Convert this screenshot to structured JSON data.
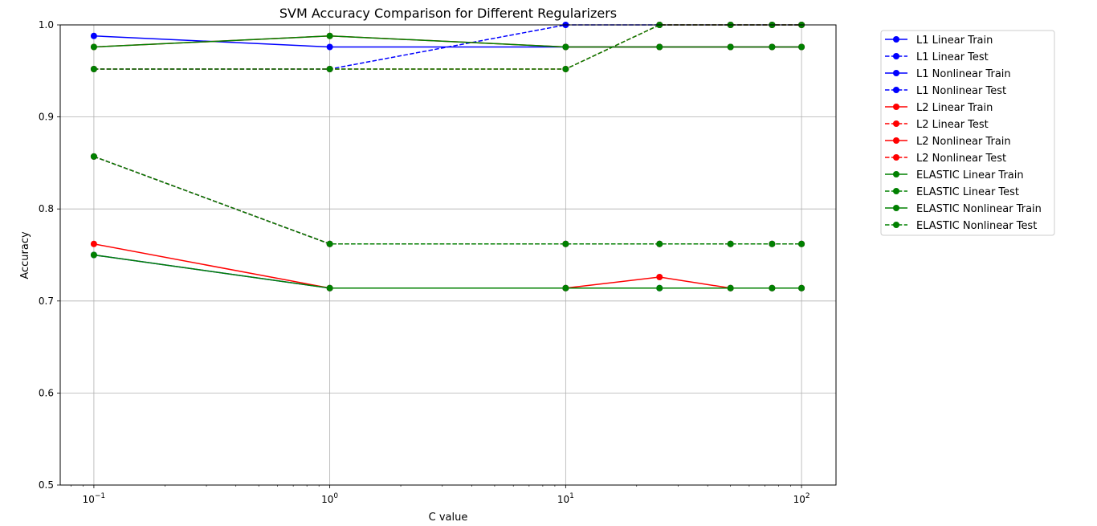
{
  "chart_data": {
    "type": "line",
    "title": "SVM Accuracy Comparison for Different Regularizers",
    "xlabel": "C value",
    "ylabel": "Accuracy",
    "xscale": "log",
    "xlim": [
      0.072,
      140
    ],
    "ylim": [
      0.5,
      1.0
    ],
    "grid": true,
    "legend_position": "outside-right",
    "x_ticks": [
      {
        "value": 0.1,
        "base": "10",
        "exp": "−1"
      },
      {
        "value": 1,
        "base": "10",
        "exp": "0"
      },
      {
        "value": 10,
        "base": "10",
        "exp": "1"
      },
      {
        "value": 100,
        "base": "10",
        "exp": "2"
      }
    ],
    "y_ticks": [
      {
        "value": 0.5,
        "label": "0.5"
      },
      {
        "value": 0.6,
        "label": "0.6"
      },
      {
        "value": 0.7,
        "label": "0.7"
      },
      {
        "value": 0.8,
        "label": "0.8"
      },
      {
        "value": 0.9,
        "label": "0.9"
      },
      {
        "value": 1.0,
        "label": "1.0"
      }
    ],
    "x": [
      0.1,
      1,
      10,
      25,
      50,
      75,
      100
    ],
    "series": [
      {
        "name": "L1 Linear Train",
        "color": "#0000ff",
        "dash": "solid",
        "values": [
          0.988,
          0.976,
          0.976,
          0.976,
          0.976,
          0.976,
          0.976
        ]
      },
      {
        "name": "L1 Linear Test",
        "color": "#0000ff",
        "dash": "dashed",
        "values": [
          0.952,
          0.952,
          1.0,
          1.0,
          1.0,
          1.0,
          1.0
        ]
      },
      {
        "name": "L1 Nonlinear Train",
        "color": "#0000ff",
        "dash": "solid",
        "values": [
          0.75,
          0.714,
          0.714,
          0.714,
          0.714,
          0.714,
          0.714
        ]
      },
      {
        "name": "L1 Nonlinear Test",
        "color": "#0000ff",
        "dash": "dashed",
        "values": [
          0.857,
          0.762,
          0.762,
          0.762,
          0.762,
          0.762,
          0.762
        ]
      },
      {
        "name": "L2 Linear Train",
        "color": "#ff0000",
        "dash": "solid",
        "values": [
          0.976,
          0.988,
          0.976,
          0.976,
          0.976,
          0.976,
          0.976
        ]
      },
      {
        "name": "L2 Linear Test",
        "color": "#ff0000",
        "dash": "dashed",
        "values": [
          0.952,
          0.952,
          0.952,
          1.0,
          1.0,
          1.0,
          1.0
        ]
      },
      {
        "name": "L2 Nonlinear Train",
        "color": "#ff0000",
        "dash": "solid",
        "values": [
          0.762,
          0.714,
          0.714,
          0.726,
          0.714,
          0.714,
          0.714
        ]
      },
      {
        "name": "L2 Nonlinear Test",
        "color": "#ff0000",
        "dash": "dashed",
        "values": [
          0.857,
          0.762,
          0.762,
          0.762,
          0.762,
          0.762,
          0.762
        ]
      },
      {
        "name": "ELASTIC Linear Train",
        "color": "#008000",
        "dash": "solid",
        "values": [
          0.976,
          0.988,
          0.976,
          0.976,
          0.976,
          0.976,
          0.976
        ]
      },
      {
        "name": "ELASTIC Linear Test",
        "color": "#008000",
        "dash": "dashed",
        "values": [
          0.952,
          0.952,
          0.952,
          1.0,
          1.0,
          1.0,
          1.0
        ]
      },
      {
        "name": "ELASTIC Nonlinear Train",
        "color": "#008000",
        "dash": "solid",
        "values": [
          0.75,
          0.714,
          0.714,
          0.714,
          0.714,
          0.714,
          0.714
        ]
      },
      {
        "name": "ELASTIC Nonlinear Test",
        "color": "#008000",
        "dash": "dashed",
        "values": [
          0.857,
          0.762,
          0.762,
          0.762,
          0.762,
          0.762,
          0.762
        ]
      }
    ]
  }
}
